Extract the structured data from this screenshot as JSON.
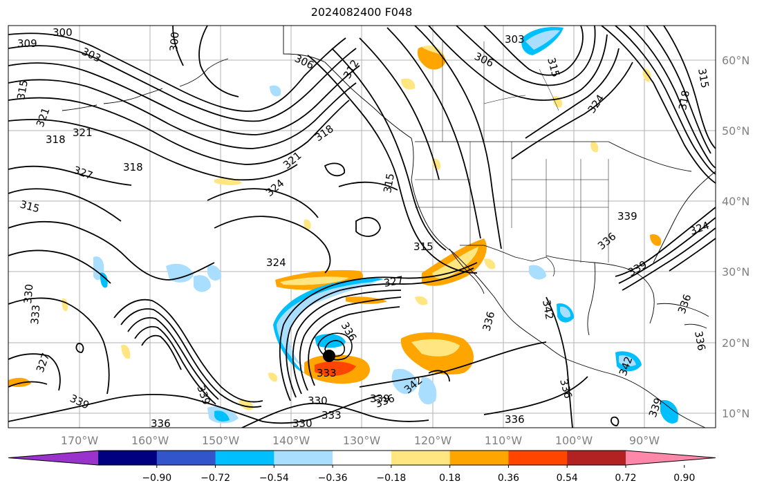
{
  "title": "2024082400 F048",
  "latitude_labels": [
    "60°N",
    "50°N",
    "40°N",
    "30°N",
    "20°N",
    "10°N"
  ],
  "longitude_labels": [
    "170°W",
    "160°W",
    "150°W",
    "140°W",
    "130°W",
    "120°W",
    "110°W",
    "100°W",
    "90°W"
  ],
  "contour_labels": [
    {
      "text": "300"
    },
    {
      "text": "303"
    },
    {
      "text": "309"
    },
    {
      "text": "300"
    },
    {
      "text": "306"
    },
    {
      "text": "312"
    },
    {
      "text": "303"
    },
    {
      "text": "306"
    },
    {
      "text": "315"
    },
    {
      "text": "315"
    },
    {
      "text": "318"
    },
    {
      "text": "324"
    },
    {
      "text": "315"
    },
    {
      "text": "321"
    },
    {
      "text": "318"
    },
    {
      "text": "321"
    },
    {
      "text": "327"
    },
    {
      "text": "318"
    },
    {
      "text": "318"
    },
    {
      "text": "321"
    },
    {
      "text": "324"
    },
    {
      "text": "315"
    },
    {
      "text": "315"
    },
    {
      "text": "315"
    },
    {
      "text": "324"
    },
    {
      "text": "327"
    },
    {
      "text": "339"
    },
    {
      "text": "336"
    },
    {
      "text": "324"
    },
    {
      "text": "336"
    },
    {
      "text": "342"
    },
    {
      "text": "336"
    },
    {
      "text": "330"
    },
    {
      "text": "333"
    },
    {
      "text": "336"
    },
    {
      "text": "342"
    },
    {
      "text": "339"
    },
    {
      "text": "330"
    },
    {
      "text": "333"
    },
    {
      "text": "330"
    },
    {
      "text": "336"
    },
    {
      "text": "339"
    },
    {
      "text": "336"
    },
    {
      "text": "342"
    },
    {
      "text": "336"
    },
    {
      "text": "333"
    },
    {
      "text": "327"
    },
    {
      "text": "339"
    },
    {
      "text": "339"
    },
    {
      "text": "336"
    },
    {
      "text": "336"
    },
    {
      "text": "339"
    }
  ],
  "colorbar": {
    "colors": [
      "#9933cc",
      "#000080",
      "#3355cc",
      "#00bfff",
      "#aadeff",
      "#ffffff",
      "#ffe680",
      "#ffa500",
      "#ff4500",
      "#b22222",
      "#ff88aa"
    ],
    "ticks": [
      "−0.90",
      "−0.72",
      "−0.54",
      "−0.36",
      "−0.18",
      "0.18",
      "0.36",
      "0.54",
      "0.72",
      "0.90"
    ]
  },
  "colors": {
    "gridline": "#b0b0b0",
    "contour": "#000000",
    "coastline": "#000000",
    "axis_label": "#808080"
  }
}
